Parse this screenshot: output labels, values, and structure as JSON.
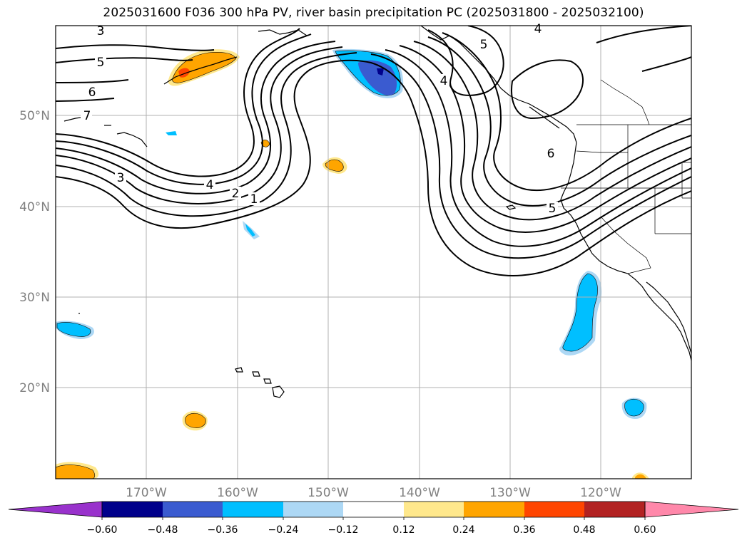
{
  "title": "2025031600 F036 300 hPa PV, river basin precipitation PC (2025031800 - 2025032100)",
  "lat_labels": [
    "50°N",
    "40°N",
    "30°N",
    "20°N"
  ],
  "lon_labels": [
    "170°W",
    "160°W",
    "150°W",
    "140°W",
    "130°W",
    "120°W"
  ],
  "contour_labels": [
    "3",
    "5",
    "6",
    "7",
    "4",
    "2",
    "1",
    "3",
    "4",
    "5",
    "6",
    "5",
    "4"
  ],
  "colorbar": {
    "ticks": [
      "−0.60",
      "−0.48",
      "−0.36",
      "−0.24",
      "−0.12",
      "0.12",
      "0.24",
      "0.36",
      "0.48",
      "0.60"
    ],
    "colors": [
      "#9932cc",
      "#00008b",
      "#3a5bd0",
      "#00bfff",
      "#add8f5",
      "#ffffff",
      "#ffe88c",
      "#ffa500",
      "#ff4500",
      "#b22222",
      "#ff88aa"
    ],
    "extend": "both"
  },
  "chart_data": {
    "type": "heatmap",
    "projection": "plate carree",
    "lon_range_deg": [
      -180,
      -110
    ],
    "lat_range_deg": [
      10,
      60
    ],
    "contour_field": "300 hPa PV",
    "contour_levels": [
      1,
      2,
      3,
      4,
      5,
      6,
      7
    ],
    "fill_field": "river basin precipitation PC",
    "fill_levels": [
      -0.6,
      -0.48,
      -0.36,
      -0.24,
      -0.12,
      0.12,
      0.24,
      0.36,
      0.48,
      0.6
    ],
    "grid": true
  }
}
